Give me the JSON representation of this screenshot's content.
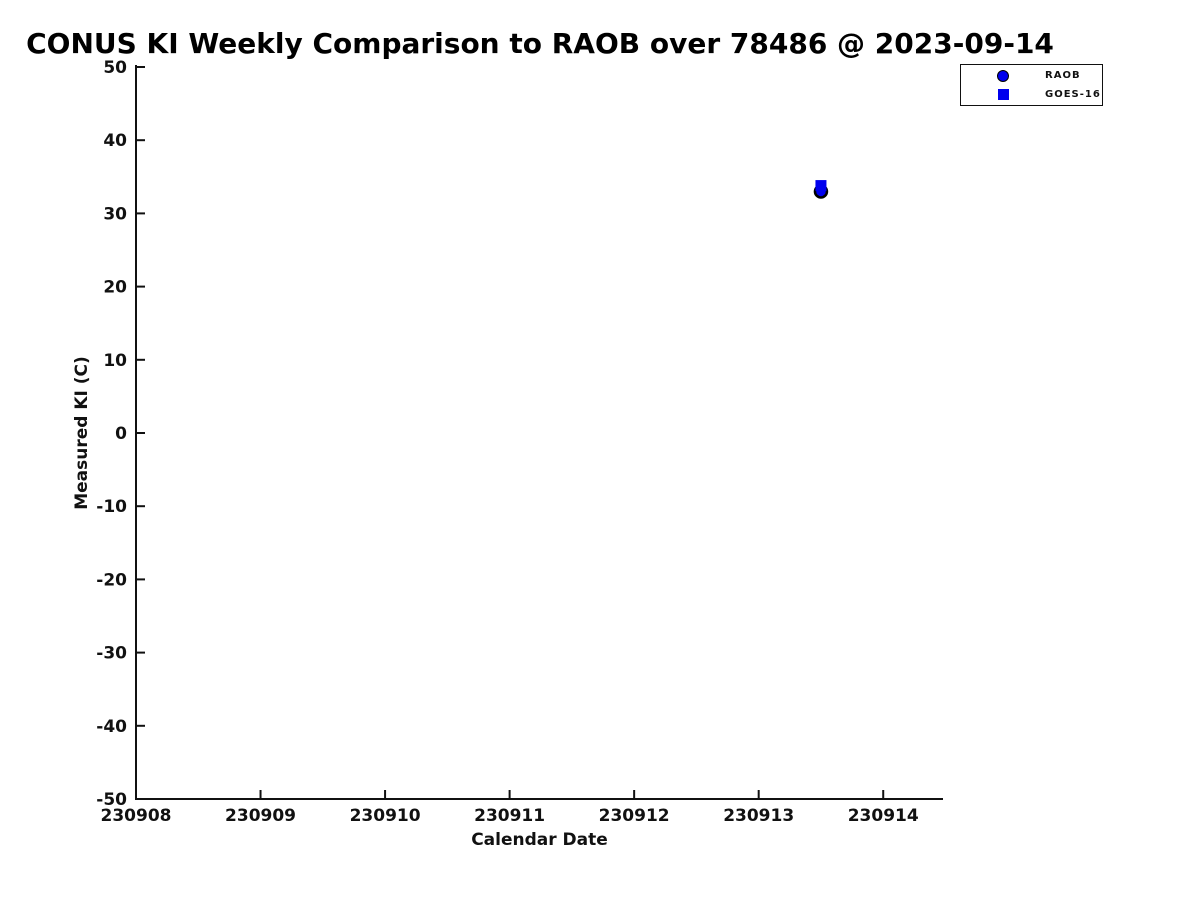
{
  "chart_data": {
    "type": "scatter",
    "title": "CONUS KI Weekly Comparison to RAOB over 78486 @ 2023-09-14",
    "xlabel": "Calendar Date",
    "ylabel": "Measured KI (C)",
    "xlim": [
      230908,
      230914.48
    ],
    "ylim": [
      -50,
      50
    ],
    "x_ticks": [
      230908,
      230909,
      230910,
      230911,
      230912,
      230913,
      230914
    ],
    "y_ticks": [
      50,
      40,
      30,
      20,
      10,
      0,
      -10,
      -20,
      -30,
      -40,
      -50
    ],
    "grid": false,
    "legend": {
      "position": "top-right",
      "entries": [
        {
          "label": "RAOB",
          "marker": "circle"
        },
        {
          "label": "GOES-16",
          "marker": "square"
        }
      ]
    },
    "series": [
      {
        "name": "RAOB",
        "marker": "circle",
        "marker_color": "#0000ee",
        "marker_edge_color": "#000000",
        "points": [
          {
            "x": 230913.5,
            "y": 33.0
          }
        ]
      },
      {
        "name": "GOES-16",
        "marker": "square",
        "marker_color": "#0000ee",
        "marker_edge_color": "#0000ee",
        "points": [
          {
            "x": 230913.5,
            "y": 33.8
          }
        ]
      }
    ],
    "colors": {
      "background": "#ffffff",
      "axis": "#111111",
      "text": "#111111",
      "accent_blue": "#0000ee"
    }
  }
}
